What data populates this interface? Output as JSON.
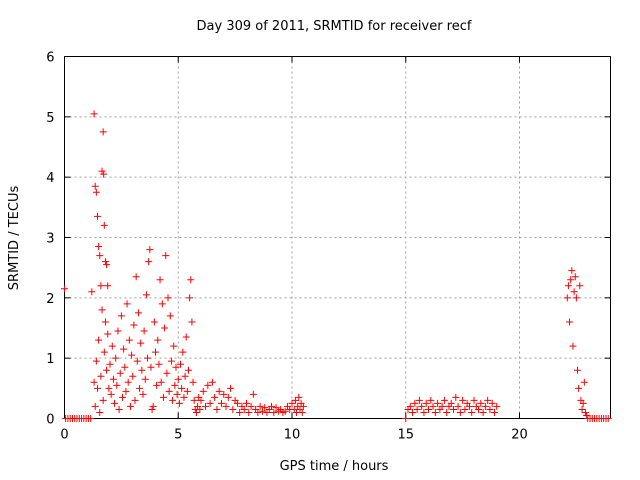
{
  "chart_data": {
    "type": "scatter",
    "title": "Day 309 of 2011, SRMTID for receiver recf",
    "xlabel": "GPS time / hours",
    "ylabel": "SRMTID / TECUs",
    "xlim": [
      0,
      24
    ],
    "ylim": [
      0,
      6
    ],
    "x_ticks": [
      {
        "value": 0,
        "label": "0"
      },
      {
        "value": 5,
        "label": "5"
      },
      {
        "value": 10,
        "label": "10"
      },
      {
        "value": 15,
        "label": "15"
      },
      {
        "value": 20,
        "label": "20"
      }
    ],
    "y_ticks": [
      {
        "value": 0,
        "label": "0"
      },
      {
        "value": 1,
        "label": "1"
      },
      {
        "value": 2,
        "label": "2"
      },
      {
        "value": 3,
        "label": "3"
      },
      {
        "value": 4,
        "label": "4"
      },
      {
        "value": 5,
        "label": "5"
      },
      {
        "value": 6,
        "label": "6"
      }
    ],
    "grid": true,
    "marker": "plus",
    "series": [
      {
        "name": "SRMTID",
        "color": "#ff0000",
        "points": [
          [
            0.0,
            2.15
          ],
          [
            0.05,
            0
          ],
          [
            0.15,
            0
          ],
          [
            0.25,
            0
          ],
          [
            0.35,
            0
          ],
          [
            0.45,
            0
          ],
          [
            0.55,
            0
          ],
          [
            0.65,
            0
          ],
          [
            0.75,
            0
          ],
          [
            0.85,
            0
          ],
          [
            0.95,
            0
          ],
          [
            1.05,
            0
          ],
          [
            1.15,
            0
          ],
          [
            1.2,
            2.1
          ],
          [
            1.3,
            5.05
          ],
          [
            1.35,
            3.85
          ],
          [
            1.4,
            3.75
          ],
          [
            1.45,
            3.35
          ],
          [
            1.5,
            2.85
          ],
          [
            1.55,
            2.7
          ],
          [
            1.6,
            2.2
          ],
          [
            1.65,
            4.1
          ],
          [
            1.7,
            4.75
          ],
          [
            1.72,
            4.05
          ],
          [
            1.75,
            3.2
          ],
          [
            1.8,
            2.6
          ],
          [
            1.85,
            2.55
          ],
          [
            1.9,
            2.2
          ],
          [
            1.3,
            0.6
          ],
          [
            1.35,
            0.2
          ],
          [
            1.4,
            0.95
          ],
          [
            1.45,
            0.5
          ],
          [
            1.5,
            1.3
          ],
          [
            1.55,
            0.1
          ],
          [
            1.6,
            0.7
          ],
          [
            1.65,
            1.8
          ],
          [
            1.7,
            0.3
          ],
          [
            1.75,
            1.1
          ],
          [
            1.8,
            1.6
          ],
          [
            1.85,
            0.8
          ],
          [
            1.9,
            1.4
          ],
          [
            1.95,
            0.5
          ],
          [
            2.0,
            0.9
          ],
          [
            2.05,
            0.4
          ],
          [
            2.1,
            1.2
          ],
          [
            2.15,
            0.65
          ],
          [
            2.2,
            0.25
          ],
          [
            2.25,
            1.0
          ],
          [
            2.3,
            0.55
          ],
          [
            2.35,
            1.45
          ],
          [
            2.4,
            0.15
          ],
          [
            2.45,
            0.75
          ],
          [
            2.5,
            1.7
          ],
          [
            2.55,
            0.35
          ],
          [
            2.6,
            1.15
          ],
          [
            2.65,
            0.85
          ],
          [
            2.7,
            0.45
          ],
          [
            2.75,
            1.9
          ],
          [
            2.8,
            0.6
          ],
          [
            2.85,
            1.3
          ],
          [
            2.9,
            0.2
          ],
          [
            2.95,
            1.05
          ],
          [
            3.0,
            0.7
          ],
          [
            3.05,
            1.55
          ],
          [
            3.1,
            0.3
          ],
          [
            3.15,
            2.35
          ],
          [
            3.2,
            0.95
          ],
          [
            3.25,
            1.75
          ],
          [
            3.3,
            0.5
          ],
          [
            3.35,
            1.25
          ],
          [
            3.4,
            0.8
          ],
          [
            3.45,
            0.4
          ],
          [
            3.5,
            1.45
          ],
          [
            3.55,
            0.65
          ],
          [
            3.6,
            2.05
          ],
          [
            3.65,
            1.0
          ],
          [
            3.7,
            2.6
          ],
          [
            3.75,
            2.8
          ],
          [
            3.8,
            0.85
          ],
          [
            3.85,
            0.15
          ],
          [
            3.9,
            0.2
          ],
          [
            3.95,
            1.6
          ],
          [
            4.0,
            1.1
          ],
          [
            4.05,
            0.55
          ],
          [
            4.1,
            1.3
          ],
          [
            4.15,
            0.9
          ],
          [
            4.2,
            2.3
          ],
          [
            4.25,
            0.6
          ],
          [
            4.3,
            1.9
          ],
          [
            4.35,
            0.35
          ],
          [
            4.4,
            1.5
          ],
          [
            4.45,
            2.7
          ],
          [
            4.5,
            0.75
          ],
          [
            4.55,
            2.0
          ],
          [
            4.6,
            0.45
          ],
          [
            4.65,
            1.7
          ],
          [
            4.7,
            0.95
          ],
          [
            4.75,
            0.3
          ],
          [
            4.8,
            1.2
          ],
          [
            4.85,
            0.55
          ],
          [
            4.9,
            0.85
          ],
          [
            4.95,
            0.4
          ],
          [
            5.0,
            0.65
          ],
          [
            5.05,
            0.25
          ],
          [
            5.1,
            0.9
          ],
          [
            5.15,
            0.5
          ],
          [
            5.2,
            1.1
          ],
          [
            5.25,
            0.35
          ],
          [
            5.3,
            0.7
          ],
          [
            5.35,
            1.35
          ],
          [
            5.4,
            0.45
          ],
          [
            5.45,
            0.8
          ],
          [
            5.5,
            2.0
          ],
          [
            5.55,
            2.3
          ],
          [
            5.6,
            1.6
          ],
          [
            5.65,
            0.6
          ],
          [
            5.7,
            0.3
          ],
          [
            5.75,
            0.15
          ],
          [
            5.8,
            0.1
          ],
          [
            5.85,
            0.2
          ],
          [
            5.9,
            0.35
          ],
          [
            5.95,
            0.15
          ],
          [
            6.0,
            0.3
          ],
          [
            6.1,
            0.45
          ],
          [
            6.2,
            0.2
          ],
          [
            6.3,
            0.55
          ],
          [
            6.4,
            0.25
          ],
          [
            6.5,
            0.6
          ],
          [
            6.6,
            0.35
          ],
          [
            6.7,
            0.15
          ],
          [
            6.8,
            0.45
          ],
          [
            6.9,
            0.25
          ],
          [
            7.0,
            0.4
          ],
          [
            7.1,
            0.2
          ],
          [
            7.2,
            0.35
          ],
          [
            7.3,
            0.5
          ],
          [
            7.4,
            0.15
          ],
          [
            7.5,
            0.3
          ],
          [
            7.6,
            0.25
          ],
          [
            7.7,
            0.1
          ],
          [
            7.8,
            0.2
          ],
          [
            7.9,
            0.15
          ],
          [
            8.0,
            0.25
          ],
          [
            8.1,
            0.1
          ],
          [
            8.2,
            0.2
          ],
          [
            8.3,
            0.4
          ],
          [
            8.4,
            0.15
          ],
          [
            8.5,
            0.1
          ],
          [
            8.6,
            0.2
          ],
          [
            8.7,
            0.12
          ],
          [
            8.8,
            0.18
          ],
          [
            8.9,
            0.1
          ],
          [
            9.0,
            0.15
          ],
          [
            9.1,
            0.2
          ],
          [
            9.2,
            0.1
          ],
          [
            9.3,
            0.18
          ],
          [
            9.4,
            0.12
          ],
          [
            9.5,
            0.15
          ],
          [
            9.6,
            0.1
          ],
          [
            9.7,
            0.12
          ],
          [
            9.8,
            0.2
          ],
          [
            9.9,
            0.15
          ],
          [
            10.0,
            0.25
          ],
          [
            10.1,
            0.15
          ],
          [
            10.15,
            0.3
          ],
          [
            10.2,
            0.1
          ],
          [
            10.25,
            0.2
          ],
          [
            10.3,
            0.35
          ],
          [
            10.35,
            0.15
          ],
          [
            10.4,
            0.25
          ],
          [
            10.45,
            0.1
          ],
          [
            10.5,
            0.2
          ],
          [
            15.0,
            0
          ],
          [
            15.1,
            0.15
          ],
          [
            15.2,
            0.2
          ],
          [
            15.3,
            0.1
          ],
          [
            15.4,
            0.25
          ],
          [
            15.5,
            0.15
          ],
          [
            15.6,
            0.3
          ],
          [
            15.7,
            0.2
          ],
          [
            15.8,
            0.1
          ],
          [
            15.9,
            0.25
          ],
          [
            16.0,
            0.15
          ],
          [
            16.1,
            0.3
          ],
          [
            16.2,
            0.2
          ],
          [
            16.3,
            0.1
          ],
          [
            16.4,
            0.25
          ],
          [
            16.5,
            0.15
          ],
          [
            16.6,
            0.2
          ],
          [
            16.7,
            0.3
          ],
          [
            16.8,
            0.1
          ],
          [
            16.9,
            0.2
          ],
          [
            17.0,
            0.25
          ],
          [
            17.1,
            0.15
          ],
          [
            17.2,
            0.35
          ],
          [
            17.3,
            0.2
          ],
          [
            17.4,
            0.1
          ],
          [
            17.5,
            0.3
          ],
          [
            17.6,
            0.15
          ],
          [
            17.7,
            0.25
          ],
          [
            17.8,
            0.2
          ],
          [
            17.9,
            0.1
          ],
          [
            18.0,
            0.3
          ],
          [
            18.1,
            0.2
          ],
          [
            18.2,
            0.15
          ],
          [
            18.3,
            0.25
          ],
          [
            18.4,
            0.1
          ],
          [
            18.5,
            0.2
          ],
          [
            18.6,
            0.3
          ],
          [
            18.7,
            0.15
          ],
          [
            18.8,
            0.25
          ],
          [
            18.9,
            0.1
          ],
          [
            19.0,
            0.2
          ],
          [
            22.1,
            2.0
          ],
          [
            22.15,
            2.2
          ],
          [
            22.2,
            1.6
          ],
          [
            22.25,
            2.3
          ],
          [
            22.3,
            2.45
          ],
          [
            22.35,
            1.2
          ],
          [
            22.4,
            2.1
          ],
          [
            22.45,
            2.35
          ],
          [
            22.5,
            2.0
          ],
          [
            22.55,
            0.8
          ],
          [
            22.6,
            0.5
          ],
          [
            22.65,
            2.2
          ],
          [
            22.7,
            0.3
          ],
          [
            22.75,
            0.15
          ],
          [
            22.8,
            0.25
          ],
          [
            22.85,
            0.6
          ],
          [
            22.9,
            0.1
          ],
          [
            22.95,
            0.05
          ],
          [
            23.0,
            0
          ],
          [
            23.1,
            0
          ],
          [
            23.2,
            0
          ],
          [
            23.3,
            0
          ],
          [
            23.4,
            0
          ],
          [
            23.5,
            0
          ],
          [
            23.6,
            0
          ],
          [
            23.7,
            0
          ],
          [
            23.8,
            0
          ],
          [
            23.9,
            0
          ]
        ]
      }
    ]
  }
}
